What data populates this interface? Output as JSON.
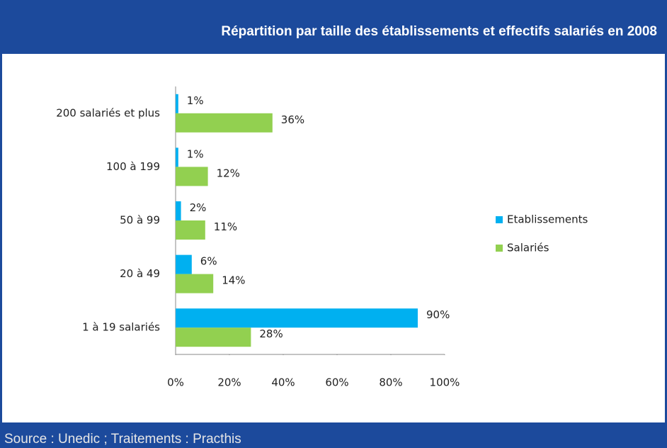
{
  "title": "Répartition par taille des établissements et effectifs salariés en 2008",
  "source": "Source : Unedic ; Traitements : Practhis",
  "chart_data": {
    "type": "bar",
    "orientation": "horizontal",
    "categories": [
      "200 salariés et plus",
      "100 à 199",
      "50 à 99",
      "20 à 49",
      "1 à 19 salariés"
    ],
    "series": [
      {
        "name": "Etablissements",
        "color": "#00b0f0",
        "values": [
          1,
          1,
          2,
          6,
          90
        ],
        "value_labels": [
          "1%",
          "1%",
          "2%",
          "6%",
          "90%"
        ]
      },
      {
        "name": "Salariés",
        "color": "#92d050",
        "values": [
          36,
          12,
          11,
          14,
          28
        ],
        "value_labels": [
          "36%",
          "12%",
          "11%",
          "14%",
          "28%"
        ]
      }
    ],
    "xlim": [
      0,
      100
    ],
    "xticks": [
      {
        "value": 0,
        "label": "0%"
      },
      {
        "value": 20,
        "label": "20%"
      },
      {
        "value": 40,
        "label": "40%"
      },
      {
        "value": 60,
        "label": "60%"
      },
      {
        "value": 80,
        "label": "80%"
      },
      {
        "value": 100,
        "label": "100%"
      }
    ],
    "legend": "right"
  }
}
